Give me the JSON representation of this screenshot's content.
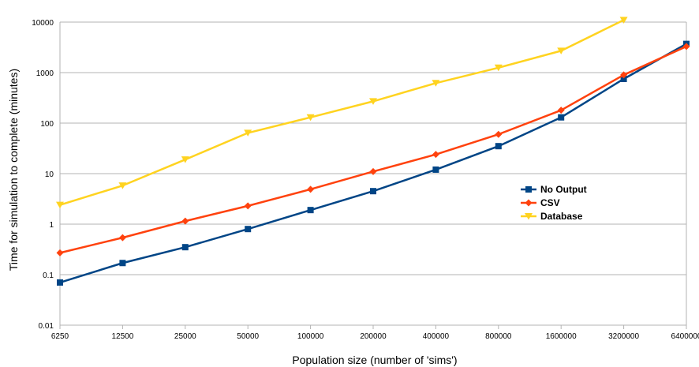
{
  "chart_data": {
    "type": "line",
    "title": "",
    "xlabel": "Population size (number of 'sims')",
    "ylabel": "Time for simulation to complete (minutes)",
    "y_scale": "log",
    "ylim": [
      0.01,
      10000
    ],
    "grid": true,
    "legend_position": "right-center",
    "categories": [
      "6250",
      "12500",
      "25000",
      "50000",
      "100000",
      "200000",
      "400000",
      "800000",
      "1600000",
      "3200000",
      "6400000"
    ],
    "y_ticks": [
      "0.01",
      "0.1",
      "1",
      "10",
      "100",
      "1000",
      "10000"
    ],
    "series": [
      {
        "name": "No Output",
        "color": "#004586",
        "marker": "square",
        "values": [
          0.07,
          0.17,
          0.35,
          0.8,
          1.9,
          4.5,
          12,
          35,
          130,
          750,
          3700
        ]
      },
      {
        "name": "CSV",
        "color": "#ff420e",
        "marker": "diamond",
        "values": [
          0.27,
          0.54,
          1.15,
          2.3,
          4.9,
          11,
          24,
          60,
          180,
          900,
          3300
        ]
      },
      {
        "name": "Database",
        "color": "#ffd320",
        "marker": "triangle-down",
        "values": [
          2.4,
          5.8,
          19,
          64,
          130,
          270,
          620,
          1250,
          2700,
          11000,
          null
        ]
      }
    ]
  }
}
